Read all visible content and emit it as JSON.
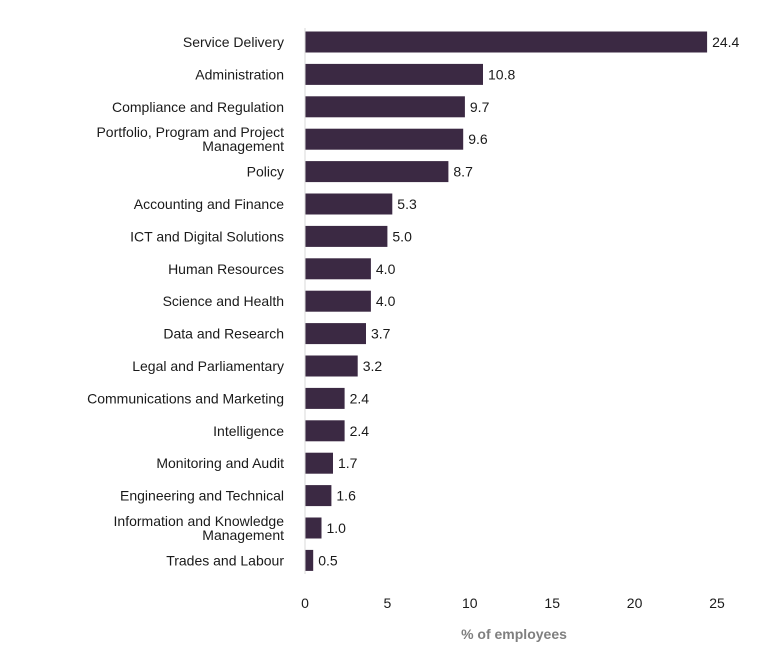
{
  "chart_data": {
    "type": "bar",
    "orientation": "horizontal",
    "categories": [
      "Service Delivery",
      "Administration",
      "Compliance and Regulation",
      "Portfolio, Program and Project Management",
      "Policy",
      "Accounting and Finance",
      "ICT and Digital Solutions",
      "Human Resources",
      "Science and Health",
      "Data and Research",
      "Legal and Parliamentary",
      "Communications and Marketing",
      "Intelligence",
      "Monitoring and Audit",
      "Engineering and Technical",
      "Information and Knowledge Management",
      "Trades and Labour"
    ],
    "category_lines": [
      [
        "Service Delivery"
      ],
      [
        "Administration"
      ],
      [
        "Compliance and Regulation"
      ],
      [
        "Portfolio, Program and Project",
        "Management"
      ],
      [
        "Policy"
      ],
      [
        "Accounting and Finance"
      ],
      [
        "ICT and Digital Solutions"
      ],
      [
        "Human Resources"
      ],
      [
        "Science and Health"
      ],
      [
        "Data and Research"
      ],
      [
        "Legal and Parliamentary"
      ],
      [
        "Communications and Marketing"
      ],
      [
        "Intelligence"
      ],
      [
        "Monitoring and Audit"
      ],
      [
        "Engineering and Technical"
      ],
      [
        "Information and Knowledge",
        "Management"
      ],
      [
        "Trades and Labour"
      ]
    ],
    "values": [
      24.4,
      10.8,
      9.7,
      9.6,
      8.7,
      5.3,
      5.0,
      4.0,
      4.0,
      3.7,
      3.2,
      2.4,
      2.4,
      1.7,
      1.6,
      1.0,
      0.5
    ],
    "value_labels": [
      "24.4",
      "10.8",
      "9.7",
      "9.6",
      "8.7",
      "5.3",
      "5.0",
      "4.0",
      "4.0",
      "3.7",
      "3.2",
      "2.4",
      "2.4",
      "1.7",
      "1.6",
      "1.0",
      "0.5"
    ],
    "xlabel": "% of employees",
    "xlim": [
      0,
      25
    ],
    "xticks": [
      "0",
      "5",
      "10",
      "15",
      "20",
      "25"
    ],
    "grid": false,
    "legend": "none",
    "bar_color": "#3b2943",
    "axis_title_color": "#7f7f7f"
  }
}
